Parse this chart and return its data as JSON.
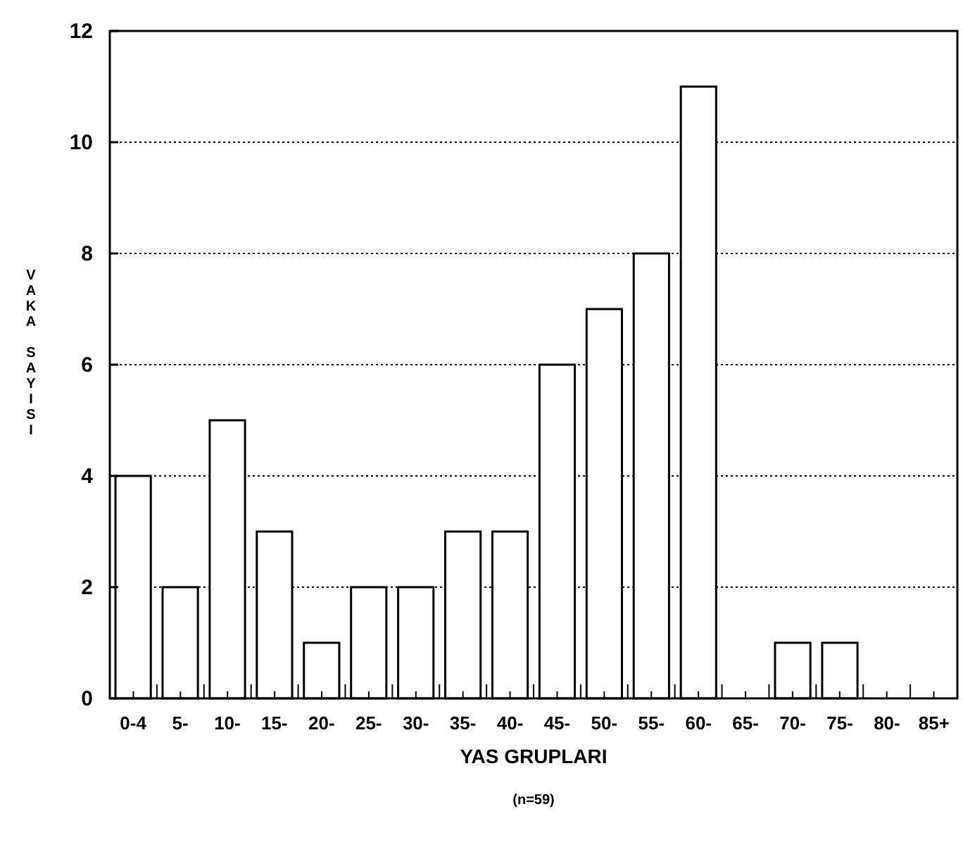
{
  "chart_data": {
    "type": "bar",
    "xlabel": "YAS GRUPLARI",
    "ylabel": "VAKA SAYISI",
    "annotations": [
      "(n=59)"
    ],
    "categories": [
      "0-4",
      "5-",
      "10-",
      "15-",
      "20-",
      "25-",
      "30-",
      "35-",
      "40-",
      "45-",
      "50-",
      "55-",
      "60-",
      "65-",
      "70-",
      "75-",
      "80-",
      "85+"
    ],
    "values": [
      4,
      2,
      5,
      3,
      1,
      2,
      2,
      3,
      3,
      6,
      7,
      8,
      11,
      0,
      1,
      1,
      0,
      0
    ],
    "color": "#ffffff",
    "ylim": [
      0,
      12
    ],
    "yticks": [
      0,
      2,
      4,
      6,
      8,
      10,
      12
    ],
    "grid": "y"
  }
}
